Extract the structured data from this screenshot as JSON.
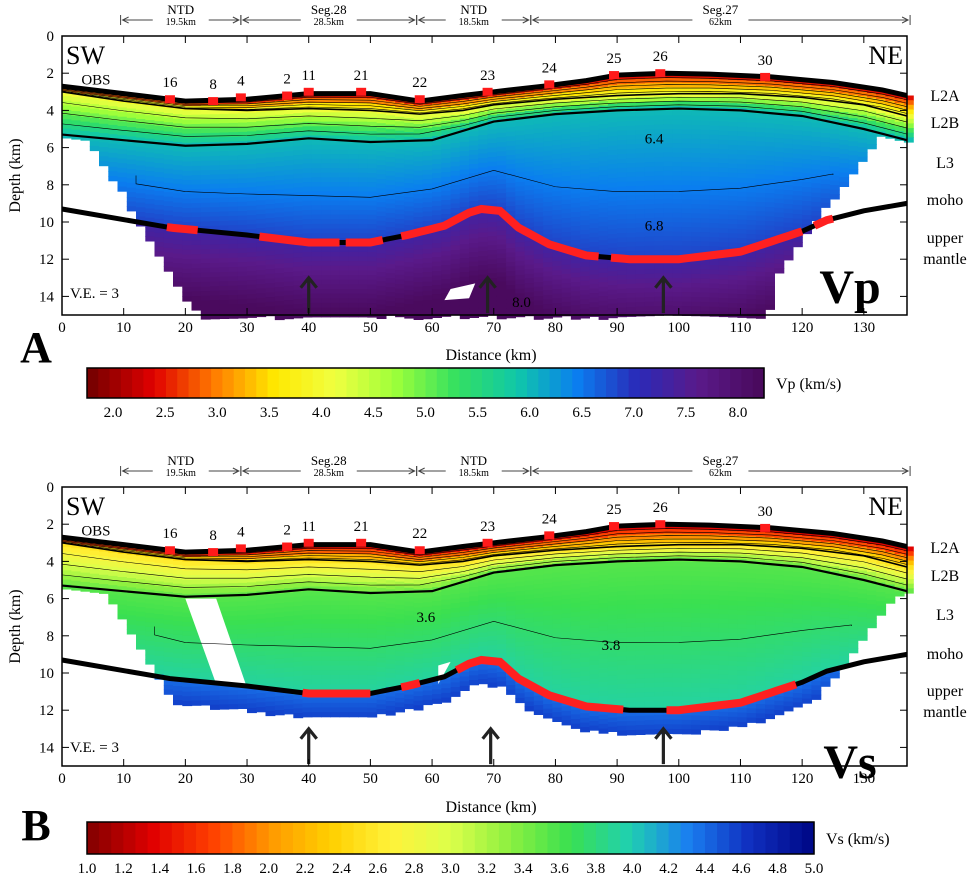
{
  "panels": [
    {
      "id": "A",
      "letter": "A",
      "quantity": "Vp",
      "ve_label": "V.E. = 3",
      "xlabel": "Distance (km)",
      "ylabel": "Depth (km)",
      "xlim": [
        0,
        137
      ],
      "ylim": [
        0,
        15
      ],
      "x_ticks": [
        0,
        10,
        20,
        30,
        40,
        50,
        60,
        70,
        80,
        90,
        100,
        110,
        120,
        130
      ],
      "y_ticks": [
        0,
        2,
        4,
        6,
        8,
        10,
        12,
        14
      ],
      "corner_left": "SW",
      "corner_right": "NE",
      "obs_label": "OBS",
      "colorbar": {
        "label": "Vp (km/s)",
        "min": 1.75,
        "max": 8.25,
        "ticks": [
          "2.0",
          "2.5",
          "3.0",
          "3.5",
          "4.0",
          "4.5",
          "5.0",
          "5.5",
          "6.0",
          "6.5",
          "7.0",
          "7.5",
          "8.0"
        ],
        "stops": [
          "#7a0000",
          "#e00000",
          "#ff7a00",
          "#ffe800",
          "#f0ff40",
          "#9dff3a",
          "#34e060",
          "#10c8a8",
          "#0a7ef0",
          "#2a2ab8",
          "#5a1a8a",
          "#4a0a5e"
        ]
      },
      "contour_labels": [
        {
          "text": "6.4",
          "x": 96,
          "y": 5.5
        },
        {
          "text": "6.8",
          "x": 96,
          "y": 10.2
        },
        {
          "text": "8.0",
          "x": 74.5,
          "y": 14.3
        }
      ],
      "arrows_x": [
        40,
        69,
        97.5
      ]
    },
    {
      "id": "B",
      "letter": "B",
      "quantity": "Vs",
      "ve_label": "V.E. = 3",
      "xlabel": "Distance (km)",
      "ylabel": "Depth (km)",
      "xlim": [
        0,
        137
      ],
      "ylim": [
        0,
        15
      ],
      "x_ticks": [
        0,
        10,
        20,
        30,
        40,
        50,
        60,
        70,
        80,
        90,
        100,
        110,
        120,
        130
      ],
      "y_ticks": [
        0,
        2,
        4,
        6,
        8,
        10,
        12,
        14
      ],
      "corner_left": "SW",
      "corner_right": "NE",
      "obs_label": "OBS",
      "colorbar": {
        "label": "Vs (km/s)",
        "min": 1.0,
        "max": 5.0,
        "ticks": [
          "1.0",
          "1.2",
          "1.4",
          "1.6",
          "1.8",
          "2.0",
          "2.2",
          "2.4",
          "2.6",
          "2.8",
          "3.0",
          "3.2",
          "3.4",
          "3.6",
          "3.8",
          "4.0",
          "4.2",
          "4.4",
          "4.6",
          "4.8",
          "5.0"
        ],
        "stops": [
          "#8a0000",
          "#e00000",
          "#ff4000",
          "#ff9a00",
          "#ffd000",
          "#fff23a",
          "#dcff4a",
          "#8cf040",
          "#3ae050",
          "#20d0b0",
          "#1a7ef0",
          "#1030c0",
          "#000a8a"
        ]
      },
      "contour_labels": [
        {
          "text": "3.6",
          "x": 59,
          "y": 7.0
        },
        {
          "text": "3.8",
          "x": 89,
          "y": 8.5
        }
      ],
      "arrows_x": [
        40,
        69.5,
        97.5
      ]
    }
  ],
  "layer_labels": [
    "L2A",
    "L2B",
    "L3",
    "moho",
    "upper",
    "mantle"
  ],
  "segments": [
    {
      "name": "NTD",
      "length": "19.5km",
      "x0": 9.5,
      "x1": 29
    },
    {
      "name": "Seg.28",
      "length": "28.5km",
      "x0": 29,
      "x1": 57.5
    },
    {
      "name": "NTD",
      "length": "18.5km",
      "x0": 57.5,
      "x1": 76
    },
    {
      "name": "Seg.27",
      "length": "62km",
      "x0": 76,
      "x1": 137.5
    }
  ],
  "obs": [
    {
      "label": "16",
      "x": 17.5,
      "depth": 3.4
    },
    {
      "label": "8",
      "x": 24.5,
      "depth": 3.5
    },
    {
      "label": "4",
      "x": 29.0,
      "depth": 3.3
    },
    {
      "label": "2",
      "x": 36.5,
      "depth": 3.2
    },
    {
      "label": "11",
      "x": 40.0,
      "depth": 3.0
    },
    {
      "label": "21",
      "x": 48.5,
      "depth": 3.0
    },
    {
      "label": "22",
      "x": 58.0,
      "depth": 3.4
    },
    {
      "label": "23",
      "x": 69.0,
      "depth": 3.0
    },
    {
      "label": "24",
      "x": 79.0,
      "depth": 2.6
    },
    {
      "label": "25",
      "x": 89.5,
      "depth": 2.1
    },
    {
      "label": "26",
      "x": 97.0,
      "depth": 2.0
    },
    {
      "label": "30",
      "x": 114.0,
      "depth": 2.2
    }
  ],
  "chart_data": [
    {
      "type": "heatmap",
      "title": "Vp",
      "xlabel": "Distance (km)",
      "ylabel": "Depth (km)",
      "xlim": [
        0,
        137
      ],
      "ylim": [
        0,
        15
      ],
      "colorbar_label": "Vp (km/s)",
      "colorbar_range": [
        1.75,
        8.25
      ],
      "seafloor": {
        "x": [
          0,
          10,
          20,
          30,
          40,
          50,
          58,
          65,
          70,
          78,
          85,
          90,
          98,
          105,
          115,
          125,
          133,
          137
        ],
        "depth": [
          2.7,
          3.1,
          3.5,
          3.4,
          3.1,
          3.1,
          3.5,
          3.2,
          3.0,
          2.7,
          2.4,
          2.1,
          2.0,
          2.05,
          2.2,
          2.5,
          2.9,
          3.2
        ]
      },
      "l2a_base": {
        "x": [
          0,
          10,
          20,
          30,
          40,
          50,
          58,
          65,
          70,
          80,
          90,
          100,
          110,
          120,
          130,
          137
        ],
        "depth": [
          3.0,
          3.5,
          3.9,
          4.0,
          3.9,
          4.0,
          4.2,
          4.0,
          3.7,
          3.4,
          3.2,
          3.1,
          3.1,
          3.3,
          3.7,
          4.3
        ]
      },
      "l2b_base": {
        "x": [
          0,
          10,
          20,
          30,
          40,
          50,
          60,
          70,
          80,
          90,
          100,
          110,
          120,
          130,
          137
        ],
        "depth": [
          5.3,
          5.6,
          5.9,
          5.8,
          5.5,
          5.7,
          5.6,
          4.6,
          4.2,
          4.0,
          3.9,
          4.0,
          4.3,
          5.0,
          5.6
        ]
      },
      "moho": {
        "x": [
          0,
          17.5,
          30,
          40,
          50,
          56,
          62,
          66,
          68,
          71,
          74,
          79,
          85,
          92,
          100,
          110,
          120,
          124,
          130,
          137
        ],
        "depth": [
          9.3,
          10.3,
          10.7,
          11.1,
          11.1,
          10.7,
          10.2,
          9.5,
          9.3,
          9.4,
          10.3,
          11.2,
          11.8,
          12.0,
          12.0,
          11.6,
          10.5,
          9.9,
          9.4,
          9.0
        ]
      },
      "contours": [
        {
          "label": "6.4",
          "x": 96,
          "depth": 5.5
        },
        {
          "label": "6.8",
          "x": 96,
          "depth": 10.2
        },
        {
          "label": "8.0",
          "x": 74.5,
          "depth": 14.3
        }
      ],
      "annotations": [
        "V.E. = 3",
        "SW",
        "NE",
        "OBS"
      ]
    },
    {
      "type": "heatmap",
      "title": "Vs",
      "xlabel": "Distance (km)",
      "ylabel": "Depth (km)",
      "xlim": [
        0,
        137
      ],
      "ylim": [
        0,
        15
      ],
      "colorbar_label": "Vs (km/s)",
      "colorbar_range": [
        1.0,
        5.0
      ],
      "seafloor": {
        "x": [
          0,
          10,
          20,
          30,
          40,
          50,
          58,
          65,
          70,
          78,
          85,
          90,
          98,
          105,
          115,
          125,
          133,
          137
        ],
        "depth": [
          2.7,
          3.1,
          3.5,
          3.4,
          3.1,
          3.1,
          3.5,
          3.2,
          3.0,
          2.7,
          2.4,
          2.1,
          2.0,
          2.05,
          2.2,
          2.5,
          2.9,
          3.2
        ]
      },
      "l2a_base": {
        "x": [
          0,
          10,
          20,
          30,
          40,
          50,
          58,
          65,
          70,
          80,
          90,
          100,
          110,
          120,
          130,
          137
        ],
        "depth": [
          3.0,
          3.5,
          3.9,
          4.0,
          3.9,
          4.0,
          4.2,
          4.0,
          3.7,
          3.4,
          3.2,
          3.1,
          3.1,
          3.3,
          3.7,
          4.3
        ]
      },
      "l2b_base": {
        "x": [
          0,
          10,
          20,
          30,
          40,
          50,
          60,
          70,
          80,
          90,
          100,
          110,
          120,
          130,
          137
        ],
        "depth": [
          5.3,
          5.6,
          5.9,
          5.8,
          5.5,
          5.7,
          5.6,
          4.6,
          4.2,
          4.0,
          3.9,
          4.0,
          4.3,
          5.0,
          5.6
        ]
      },
      "moho": {
        "x": [
          0,
          17.5,
          30,
          40,
          50,
          56,
          62,
          66,
          68,
          71,
          74,
          79,
          85,
          92,
          100,
          110,
          120,
          124,
          130,
          137
        ],
        "depth": [
          9.3,
          10.3,
          10.7,
          11.1,
          11.1,
          10.7,
          10.2,
          9.5,
          9.3,
          9.4,
          10.3,
          11.2,
          11.8,
          12.0,
          12.0,
          11.6,
          10.5,
          9.9,
          9.4,
          9.0
        ]
      },
      "contours": [
        {
          "label": "3.6",
          "x": 59,
          "depth": 7.0
        },
        {
          "label": "3.8",
          "x": 89,
          "depth": 8.5
        }
      ],
      "annotations": [
        "V.E. = 3",
        "SW",
        "NE",
        "OBS"
      ]
    }
  ]
}
